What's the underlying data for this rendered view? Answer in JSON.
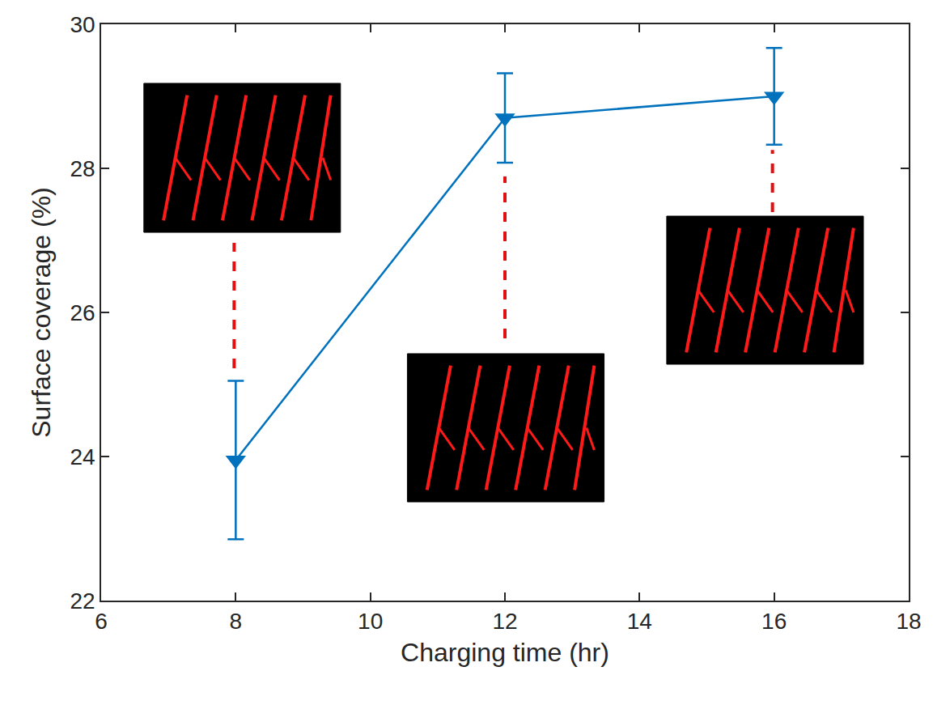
{
  "chart_data": {
    "type": "line",
    "x_label": "Charging time (hr)",
    "y_label": "Surface coverage (%)",
    "x": [
      8,
      12,
      16
    ],
    "series": [
      {
        "name": "Surface coverage",
        "color": "#0072bd",
        "marker": "triangle-down",
        "line_style": "solid",
        "values": [
          23.95,
          28.7,
          29.0
        ],
        "error": [
          1.1,
          0.62,
          0.67
        ]
      }
    ],
    "xlim": [
      6,
      18
    ],
    "xticks": [
      6,
      8,
      10,
      12,
      14,
      16,
      18
    ],
    "ylim": [
      22,
      30
    ],
    "yticks": [
      22,
      24,
      26,
      28,
      30
    ],
    "grid": false
  }
}
